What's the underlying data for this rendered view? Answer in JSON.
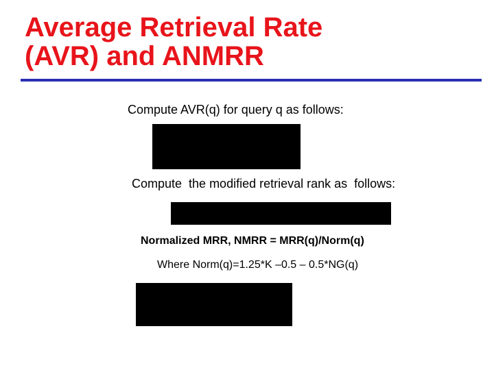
{
  "title": {
    "line1": "Average Retrieval Rate",
    "line2": "(AVR) and ANMRR"
  },
  "lines": [
    "Compute AVR(q) for query q as follows:",
    "Compute  the modified retrieval rank as  follows:",
    "Normalized MRR, NMRR = MRR(q)/Norm(q)",
    "Where Norm(q)=1.25*K –0.5 – 0.5*NG(q)"
  ]
}
